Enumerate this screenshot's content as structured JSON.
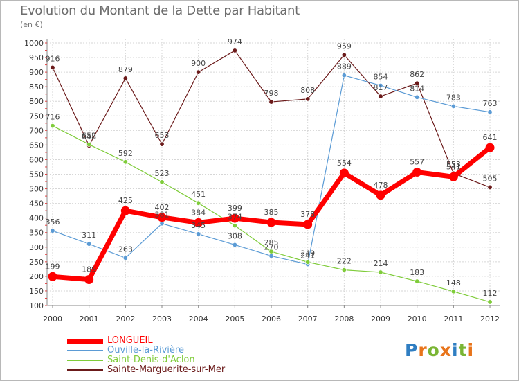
{
  "title": "Evolution du Montant de la Dette par Habitant",
  "subtitle": "(en €)",
  "logo": [
    "P",
    "r",
    "o",
    "x",
    "i",
    "t",
    "i"
  ],
  "chart_data": {
    "type": "line",
    "x": [
      "2000",
      "2001",
      "2002",
      "2003",
      "2004",
      "2005",
      "2006",
      "2007",
      "2008",
      "2009",
      "2010",
      "2011",
      "2012"
    ],
    "ylim": [
      100,
      1000
    ],
    "yticks": [
      100,
      150,
      200,
      250,
      300,
      350,
      400,
      450,
      500,
      550,
      600,
      650,
      700,
      750,
      800,
      850,
      900,
      950,
      1000
    ],
    "grid": true,
    "legend_position": "bottom-left",
    "series": [
      {
        "name": "LONGUEIL",
        "color": "#ff0000",
        "values": [
          199,
          189,
          425,
          402,
          384,
          399,
          385,
          378,
          554,
          478,
          557,
          541,
          641
        ]
      },
      {
        "name": "Ouville-la-Rivière",
        "color": "#5b9bd5",
        "values": [
          356,
          311,
          263,
          381,
          345,
          308,
          270,
          241,
          889,
          854,
          814,
          783,
          763
        ]
      },
      {
        "name": "Saint-Denis-d'Aclon",
        "color": "#7fcc3a",
        "values": [
          716,
          652,
          592,
          523,
          451,
          374,
          285,
          249,
          222,
          214,
          183,
          148,
          112
        ]
      },
      {
        "name": "Sainte-Marguerite-sur-Mer",
        "color": "#6b1a1a",
        "values": [
          916,
          648,
          879,
          653,
          900,
          974,
          798,
          808,
          959,
          817,
          862,
          553,
          505
        ]
      }
    ]
  }
}
